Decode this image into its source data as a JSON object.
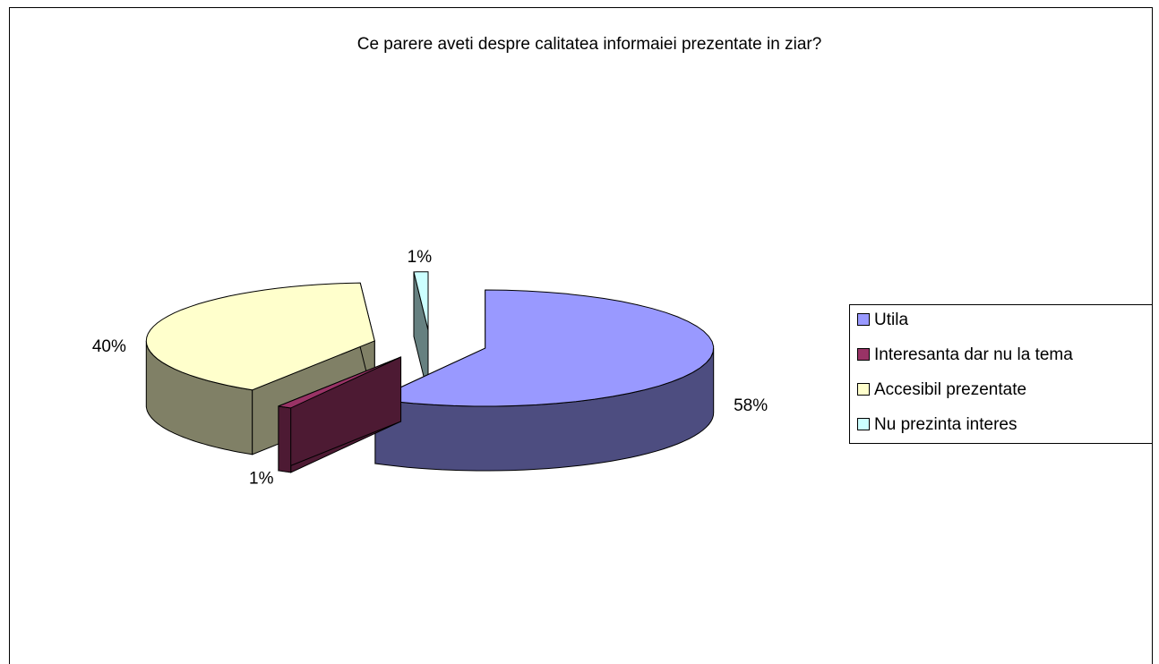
{
  "chart_data": {
    "type": "pie",
    "title": "Ce parere aveti despre calitatea informaiei prezentate in ziar?",
    "categories": [
      "Utila",
      "Interesanta dar nu la tema",
      "Accesibil prezentate",
      "Nu prezinta interes"
    ],
    "values": [
      58,
      1,
      40,
      1
    ],
    "value_labels": [
      "58%",
      "1%",
      "40%",
      "1%"
    ],
    "colors": [
      "#9999ff",
      "#993366",
      "#ffffcc",
      "#ccffff"
    ],
    "legend": "right"
  }
}
